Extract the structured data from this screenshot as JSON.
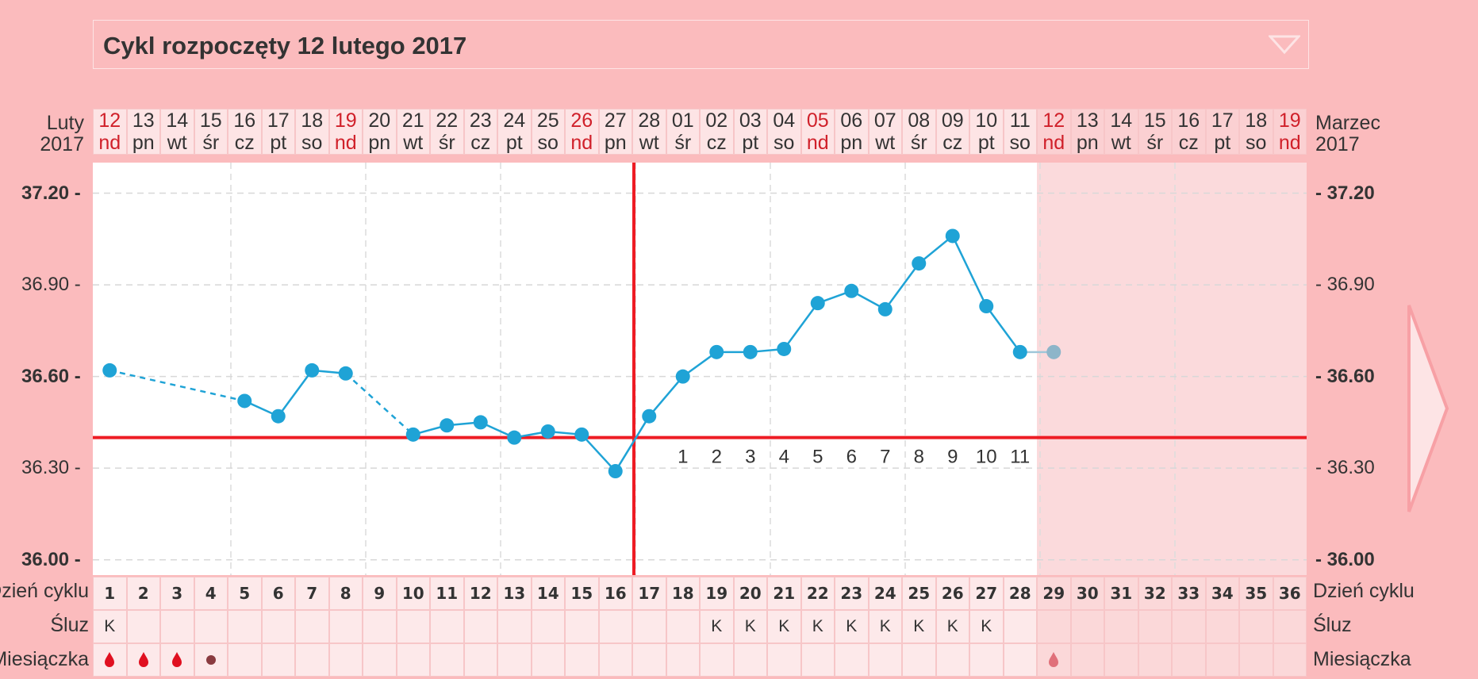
{
  "cycle_selector": {
    "title": "Cykl rozpoczęty 12 lutego 2017"
  },
  "month_left": {
    "name": "Luty",
    "year": "2017"
  },
  "month_right": {
    "name": "Marzec",
    "year": "2017"
  },
  "dates": [
    {
      "d": "12",
      "w": "nd"
    },
    {
      "d": "13",
      "w": "pn"
    },
    {
      "d": "14",
      "w": "wt"
    },
    {
      "d": "15",
      "w": "śr"
    },
    {
      "d": "16",
      "w": "cz"
    },
    {
      "d": "17",
      "w": "pt"
    },
    {
      "d": "18",
      "w": "so"
    },
    {
      "d": "19",
      "w": "nd"
    },
    {
      "d": "20",
      "w": "pn"
    },
    {
      "d": "21",
      "w": "wt"
    },
    {
      "d": "22",
      "w": "śr"
    },
    {
      "d": "23",
      "w": "cz"
    },
    {
      "d": "24",
      "w": "pt"
    },
    {
      "d": "25",
      "w": "so"
    },
    {
      "d": "26",
      "w": "nd"
    },
    {
      "d": "27",
      "w": "pn"
    },
    {
      "d": "28",
      "w": "wt"
    },
    {
      "d": "01",
      "w": "śr"
    },
    {
      "d": "02",
      "w": "cz"
    },
    {
      "d": "03",
      "w": "pt"
    },
    {
      "d": "04",
      "w": "so"
    },
    {
      "d": "05",
      "w": "nd"
    },
    {
      "d": "06",
      "w": "pn"
    },
    {
      "d": "07",
      "w": "wt"
    },
    {
      "d": "08",
      "w": "śr"
    },
    {
      "d": "09",
      "w": "cz"
    },
    {
      "d": "10",
      "w": "pt"
    },
    {
      "d": "11",
      "w": "so"
    },
    {
      "d": "12",
      "w": "nd"
    },
    {
      "d": "13",
      "w": "pn"
    },
    {
      "d": "14",
      "w": "wt"
    },
    {
      "d": "15",
      "w": "śr"
    },
    {
      "d": "16",
      "w": "cz"
    },
    {
      "d": "17",
      "w": "pt"
    },
    {
      "d": "18",
      "w": "so"
    },
    {
      "d": "19",
      "w": "nd"
    }
  ],
  "y_ticks": [
    "37.20 -",
    "36.90 -",
    "36.60 -",
    "36.30 -",
    "36.00 -"
  ],
  "y_ticks_right": [
    "- 37.20",
    "- 36.90",
    "- 36.60",
    "- 36.30",
    "- 36.00"
  ],
  "rows": {
    "cycle_day_label": "Dzień cyklu",
    "mucus_label": "Śluz",
    "period_label": "Miesiączka"
  },
  "cycle_days": [
    "1",
    "2",
    "3",
    "4",
    "5",
    "6",
    "7",
    "8",
    "9",
    "10",
    "11",
    "12",
    "13",
    "14",
    "15",
    "16",
    "17",
    "18",
    "19",
    "20",
    "21",
    "22",
    "23",
    "24",
    "25",
    "26",
    "27",
    "28",
    "29",
    "30",
    "31",
    "32",
    "33",
    "34",
    "35",
    "36"
  ],
  "mucus": [
    "K",
    "",
    "",
    "",
    "",
    "",
    "",
    "",
    "",
    "",
    "",
    "",
    "",
    "",
    "",
    "",
    "",
    "",
    "K",
    "K",
    "K",
    "K",
    "K",
    "K",
    "K",
    "K",
    "K",
    "",
    "",
    "",
    "",
    "",
    "",
    "",
    "",
    ""
  ],
  "period": [
    "heavy",
    "heavy",
    "heavy",
    "spotting",
    "",
    "",
    "",
    "",
    "",
    "",
    "",
    "",
    "",
    "",
    "",
    "",
    "",
    "",
    "",
    "",
    "",
    "",
    "",
    "",
    "",
    "",
    "",
    "",
    "light",
    "",
    "",
    "",
    "",
    "",
    "",
    ""
  ],
  "colors": {
    "background": "#fbbbbd",
    "temp_line": "#1fa3d6",
    "coverline": "#ee1c24",
    "sunday": "#d0202a",
    "future_area": "#fbdadc"
  },
  "chart_data": {
    "type": "line",
    "x": [
      1,
      2,
      3,
      4,
      5,
      6,
      7,
      8,
      9,
      10,
      11,
      12,
      13,
      14,
      15,
      16,
      17,
      18,
      19,
      20,
      21,
      22,
      23,
      24,
      25,
      26,
      27,
      28,
      29
    ],
    "series": [
      {
        "values": [
          36.62,
          null,
          null,
          null,
          36.52,
          36.47,
          36.62,
          36.61,
          null,
          36.41,
          36.44,
          36.45,
          36.4,
          36.42,
          36.41,
          36.29,
          36.47,
          36.6,
          36.68,
          36.68,
          36.69,
          36.84,
          36.88,
          36.82,
          36.97,
          37.06,
          36.83,
          36.68,
          36.68
        ]
      }
    ],
    "ylim": [
      35.95,
      37.3
    ],
    "y_ticks": [
      37.2,
      36.9,
      36.6,
      36.3,
      36.0
    ],
    "coverline": 36.4,
    "ovulation_day": 17,
    "post_ovulation_labels": [
      "1",
      "2",
      "3",
      "4",
      "5",
      "6",
      "7",
      "8",
      "9",
      "10",
      "11"
    ],
    "projected_point_day": 29,
    "grid": true
  }
}
